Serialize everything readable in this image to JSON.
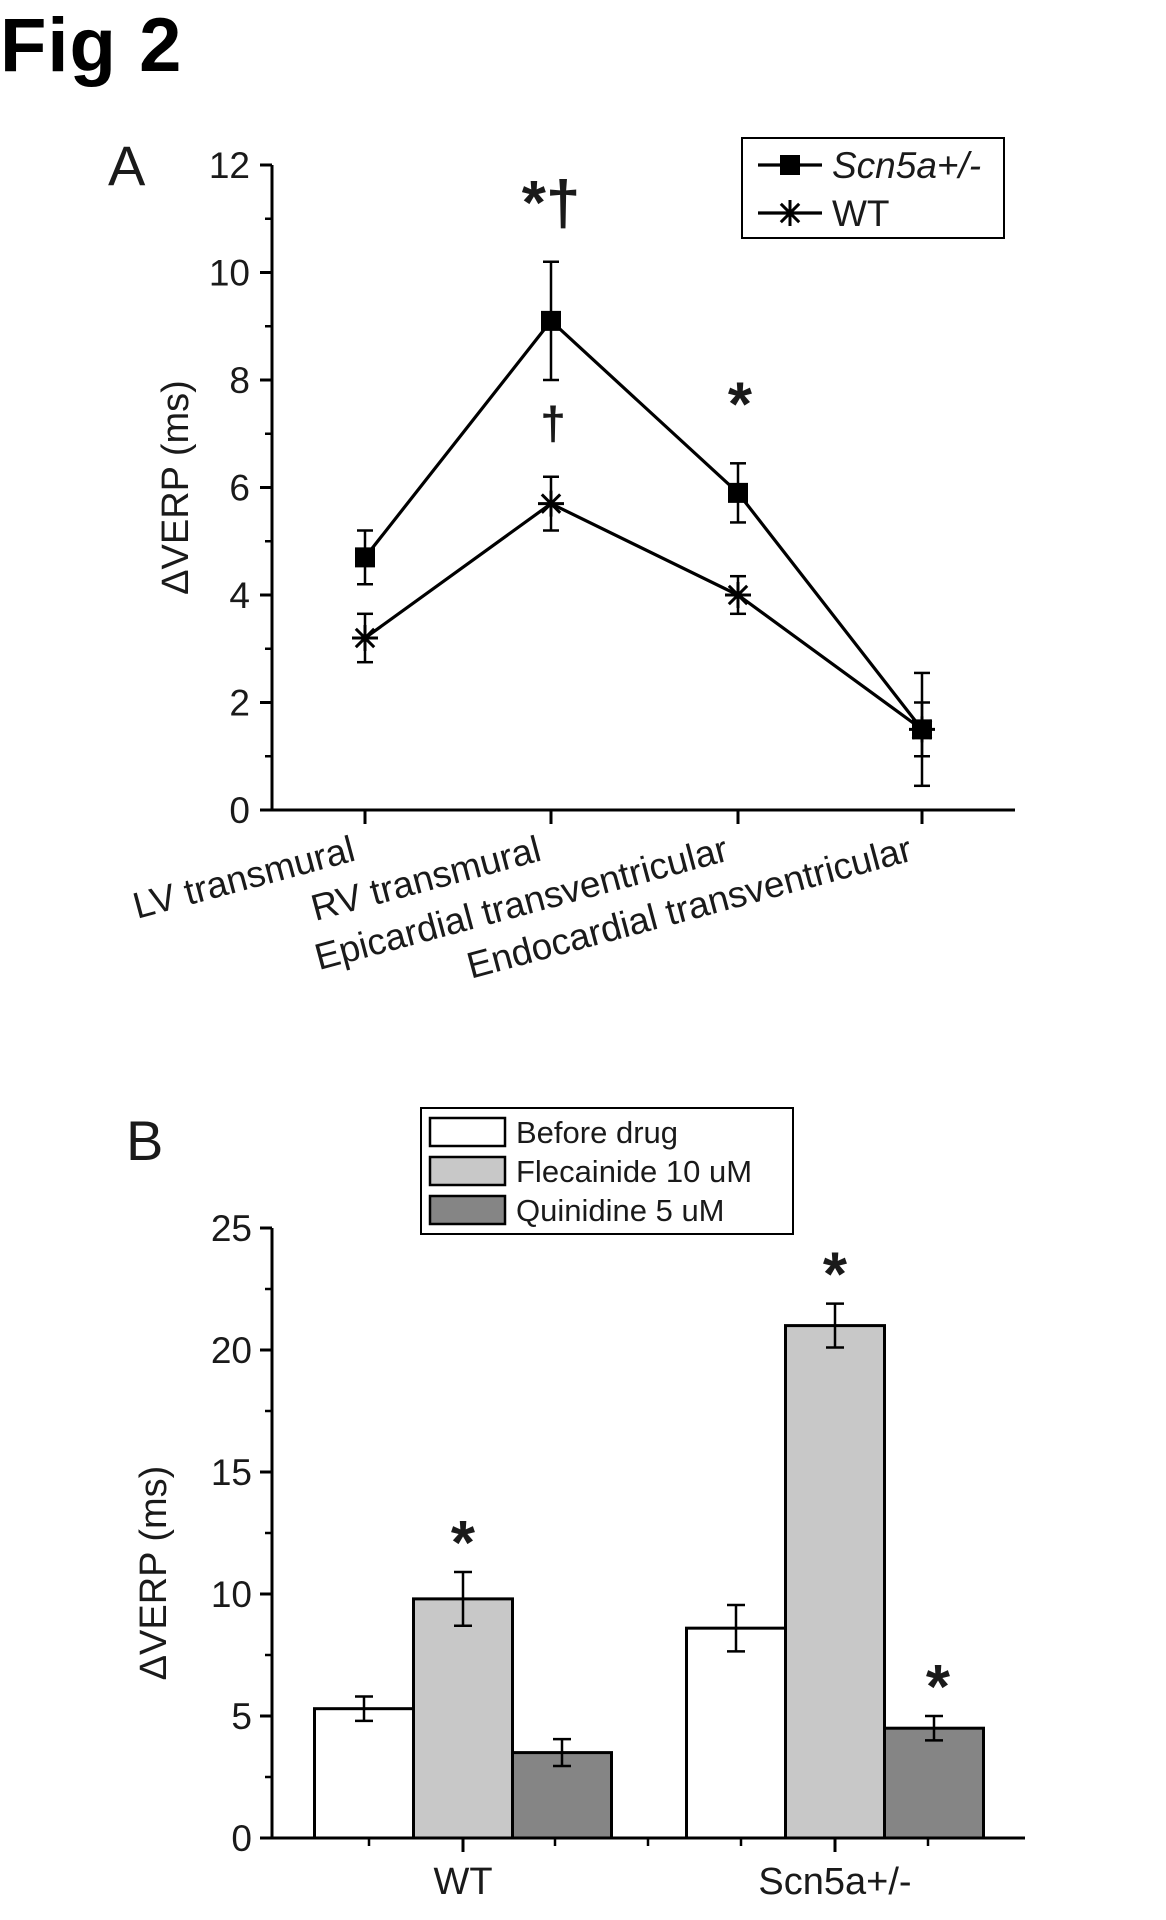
{
  "figure": {
    "title": "Fig 2"
  },
  "chart_data": [
    {
      "panel": "A",
      "type": "line",
      "ylabel": "ΔVERP (ms)",
      "xlabel": "",
      "ylim": [
        0,
        12
      ],
      "yticks": [
        0,
        2,
        4,
        6,
        8,
        10,
        12
      ],
      "categories": [
        "LV transmural",
        "RV transmural",
        "Epicardial transventricular",
        "Endocardial transventricular"
      ],
      "legend_position": "top-right",
      "grid": false,
      "series": [
        {
          "name": "Scn5a+/-",
          "marker": "square",
          "values": [
            4.7,
            9.1,
            5.9,
            1.5
          ],
          "errors": [
            0.5,
            1.1,
            0.55,
            1.05
          ]
        },
        {
          "name": "WT",
          "marker": "asterisk",
          "values": [
            3.2,
            5.7,
            4.0,
            1.5
          ],
          "errors": [
            0.45,
            0.5,
            0.35,
            0.5
          ]
        }
      ],
      "annotations": [
        {
          "category": 1,
          "series": "Scn5a+/-",
          "text": "*†"
        },
        {
          "category": 1,
          "series": "WT",
          "text": "†"
        },
        {
          "category": 2,
          "series": "Scn5a+/-",
          "text": "*"
        }
      ]
    },
    {
      "panel": "B",
      "type": "bar",
      "ylabel": "ΔVERP (ms)",
      "xlabel": "",
      "ylim": [
        0,
        25
      ],
      "yticks": [
        0,
        5,
        10,
        15,
        20,
        25
      ],
      "categories": [
        "WT",
        "Scn5a+/-"
      ],
      "legend_position": "top-center",
      "grid": false,
      "series": [
        {
          "name": "Before drug",
          "color": "#ffffff",
          "values": [
            5.3,
            8.6
          ],
          "errors": [
            0.5,
            0.95
          ]
        },
        {
          "name": "Flecainide 10 uM",
          "color": "#c8c8c8",
          "values": [
            9.8,
            21.0
          ],
          "errors": [
            1.1,
            0.9
          ]
        },
        {
          "name": "Quinidine 5 uM",
          "color": "#858585",
          "values": [
            3.5,
            4.5
          ],
          "errors": [
            0.55,
            0.5
          ]
        }
      ],
      "annotations": [
        {
          "category": 0,
          "series": "Flecainide 10 uM",
          "text": "*"
        },
        {
          "category": 1,
          "series": "Flecainide 10 uM",
          "text": "*"
        },
        {
          "category": 1,
          "series": "Quinidine 5 uM",
          "text": "*"
        }
      ]
    }
  ]
}
